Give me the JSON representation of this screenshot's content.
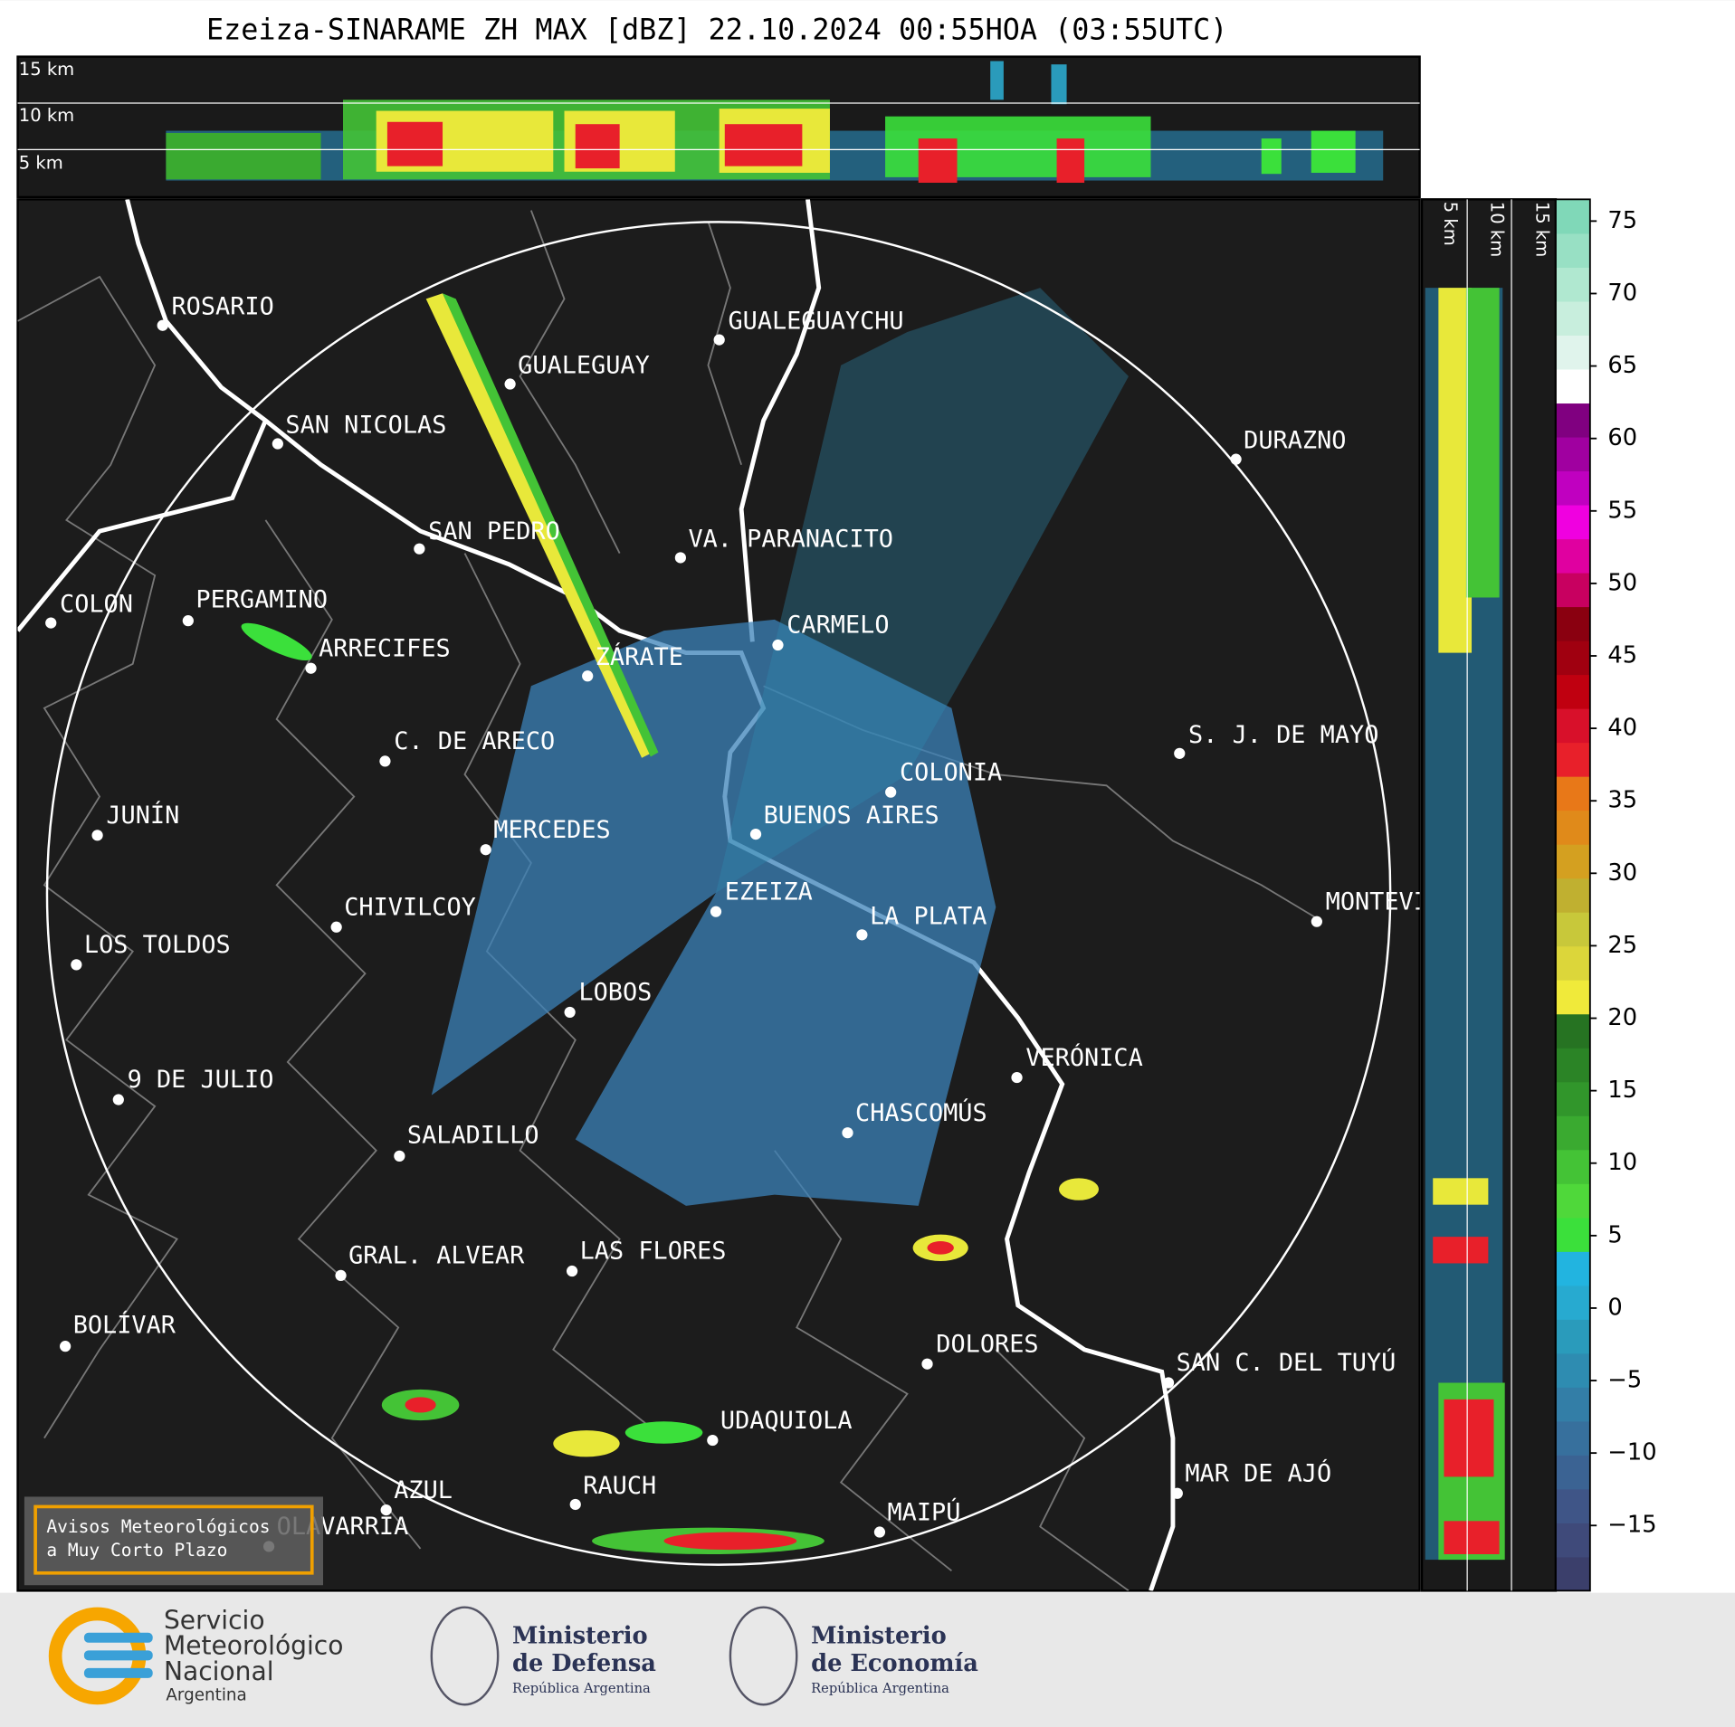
{
  "title": "Ezeiza-SINARAME ZH MAX [dBZ] 22.10.2024 00:55HOA (03:55UTC)",
  "top_panel": {
    "height_labels": [
      "15 km",
      "10 km",
      "5 km"
    ]
  },
  "side_panel": {
    "height_labels": [
      "5 km",
      "10 km",
      "15 km"
    ]
  },
  "map": {
    "cities": [
      "ROSARIO",
      "GUALEGUAYCHU",
      "GUALEGUAY",
      "SAN NICOLAS",
      "DURAZNO",
      "SAN PEDRO",
      "VA. PARANACITO",
      "COLON",
      "PERGAMINO",
      "CARMELO",
      "ARRECIFES",
      "ZÁRATE",
      "S. J. DE MAYO",
      "C. DE ARECO",
      "COLONIA",
      "BUENOS AIRES",
      "JUNÍN",
      "MERCEDES",
      "EZEIZA",
      "MONTEVIDEO",
      "LA PLATA",
      "CHIVILCOY",
      "LOS TOLDOS",
      "LOBOS",
      "VERÓNICA",
      "9 DE JULIO",
      "CHASCOMÚS",
      "SALADILLO",
      "GRAL. ALVEAR",
      "LAS FLORES",
      "BOLÍVAR",
      "DOLORES",
      "SAN C. DEL TUYÚ",
      "UDAQUIOLA",
      "MAR DE AJÓ",
      "AZUL",
      "RAUCH",
      "OLAVARRÍA",
      "MAIPÚ"
    ]
  },
  "colorbar": {
    "ylim": [
      -19.5,
      76.5
    ],
    "ticks": [
      {
        "value": -15,
        "label": "−15"
      },
      {
        "value": -10,
        "label": "−10"
      },
      {
        "value": -5,
        "label": "−5"
      },
      0,
      5,
      10,
      15,
      20,
      25,
      30,
      35,
      40,
      45,
      50,
      55,
      60,
      65,
      70,
      75
    ],
    "colors": [
      "#3b3f6b",
      "#3f4a7a",
      "#3f5587",
      "#3b6393",
      "#37709d",
      "#337ea7",
      "#2e8cb1",
      "#2a9bbb",
      "#27aad0",
      "#22b4e0",
      "#3be03b",
      "#4fd83a",
      "#44c336",
      "#3aaa30",
      "#31962b",
      "#2b8426",
      "#267322",
      "#f0ea3a",
      "#dcd63a",
      "#c8c83a",
      "#c0b030",
      "#d4a020",
      "#e08a1a",
      "#e87818",
      "#e8202a",
      "#d8102a",
      "#c00010",
      "#a00010",
      "#8a0010",
      "#c80060",
      "#e000a0",
      "#f000e0",
      "#c000c0",
      "#a000a0",
      "#800080",
      "#ffffff",
      "#e0f4ec",
      "#c8eedd",
      "#b0e8d0",
      "#98e0c4",
      "#80d8b8"
    ]
  },
  "notice": [
    "Avisos Meteorológicos",
    "a Muy Corto Plazo"
  ],
  "logos": {
    "smn": [
      "Servicio",
      "Meteorológico",
      "Nacional",
      "Argentina"
    ],
    "defensa": [
      "Ministerio",
      "de Defensa",
      "República Argentina"
    ],
    "economia": [
      "Ministerio",
      "de Economía",
      "República Argentina"
    ]
  }
}
